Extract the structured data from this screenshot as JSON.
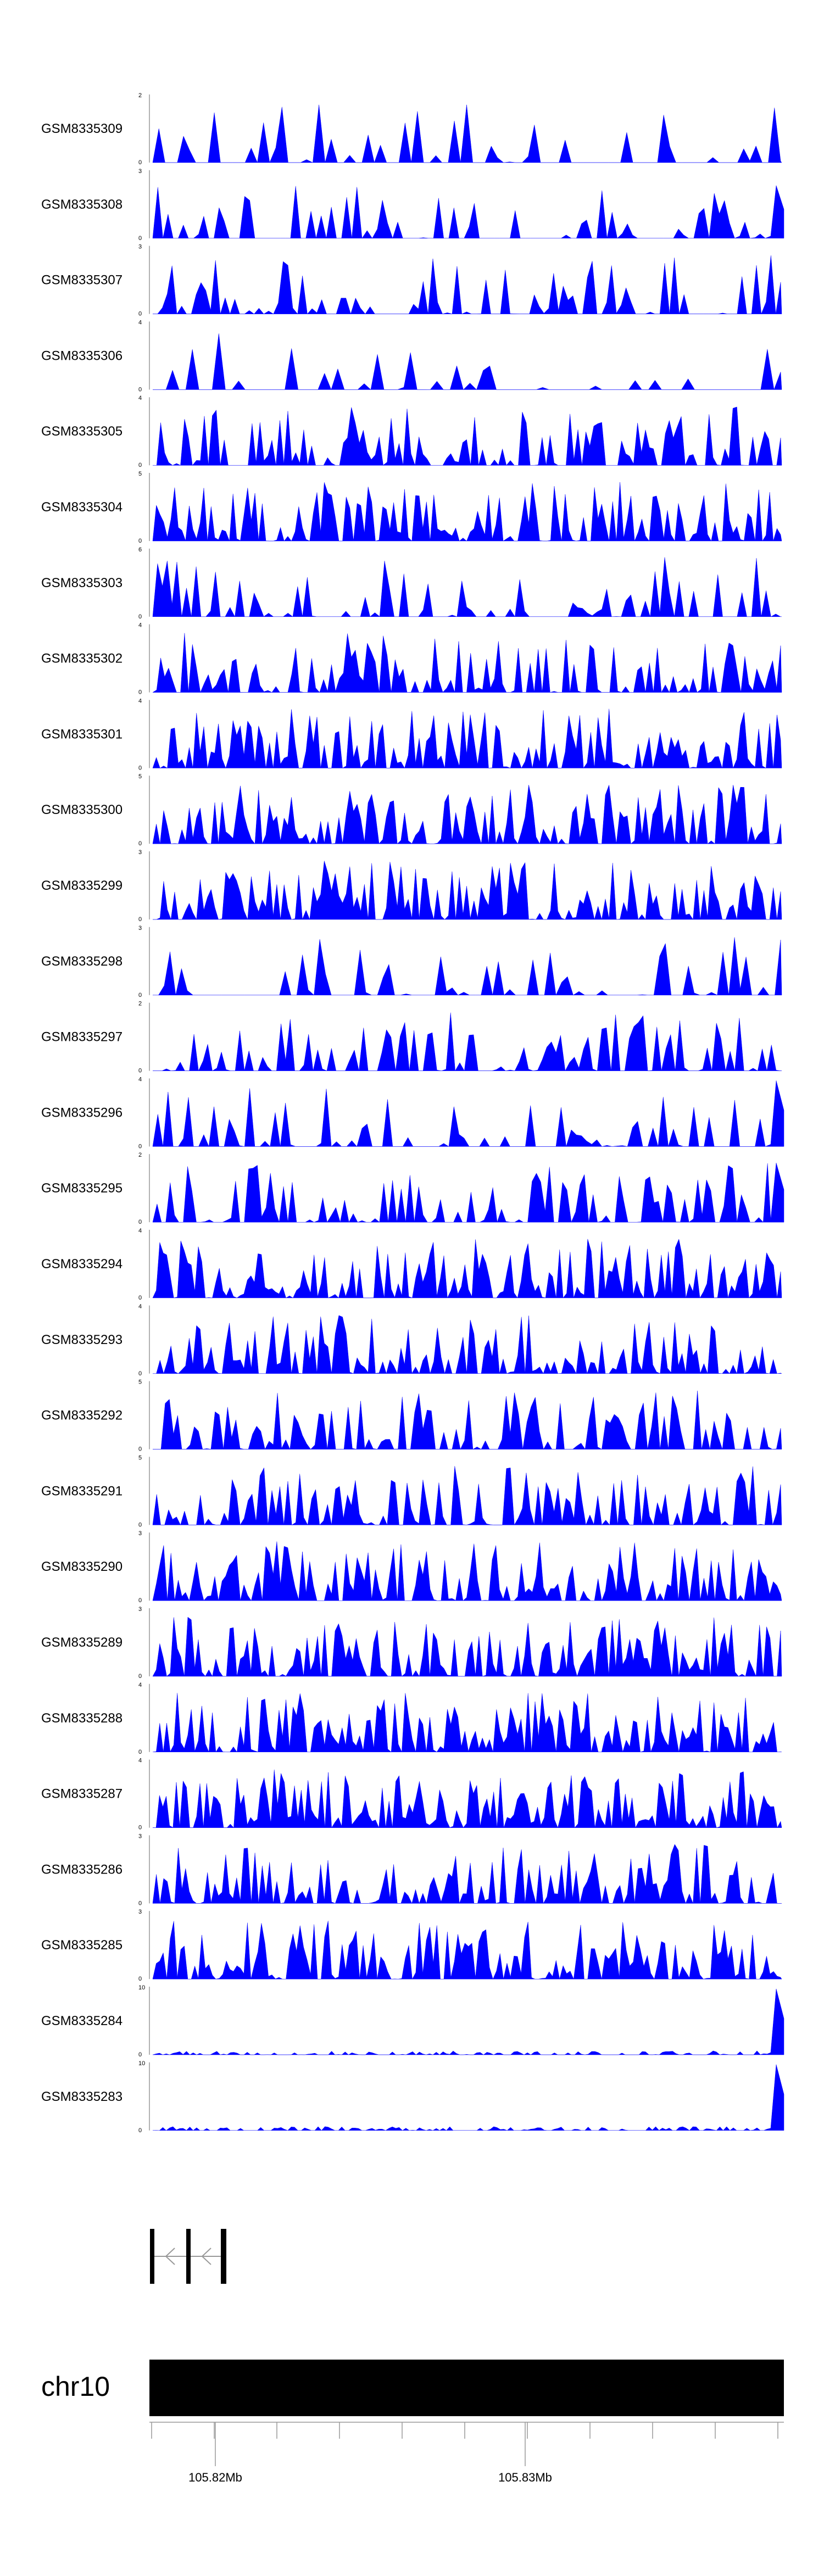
{
  "chart_data": {
    "type": "area",
    "tracks": [
      {
        "name": "GSM8335309",
        "ymax": "2",
        "ymin": "0",
        "scale": 2,
        "seed": 9,
        "density": 0.3,
        "spike": null
      },
      {
        "name": "GSM8335308",
        "ymax": "3",
        "ymin": "0",
        "scale": 3,
        "seed": 8,
        "density": 0.45,
        "spike": 0.8
      },
      {
        "name": "GSM8335307",
        "ymax": "3",
        "ymin": "0",
        "scale": 3,
        "seed": 7,
        "density": 0.5,
        "spike": null
      },
      {
        "name": "GSM8335306",
        "ymax": "4",
        "ymin": "0",
        "scale": 4,
        "seed": 6,
        "density": 0.25,
        "spike": null
      },
      {
        "name": "GSM8335305",
        "ymax": "4",
        "ymin": "0",
        "scale": 4,
        "seed": 5,
        "density": 0.7,
        "spike": null
      },
      {
        "name": "GSM8335304",
        "ymax": "5",
        "ymin": "0",
        "scale": 5,
        "seed": 4,
        "density": 0.8,
        "spike": null
      },
      {
        "name": "GSM8335303",
        "ymax": "6",
        "ymin": "0",
        "scale": 6,
        "seed": 3,
        "density": 0.5,
        "spike": null
      },
      {
        "name": "GSM8335302",
        "ymax": "4",
        "ymin": "0",
        "scale": 4,
        "seed": 2,
        "density": 0.7,
        "spike": null
      },
      {
        "name": "GSM8335301",
        "ymax": "4",
        "ymin": "0",
        "scale": 4,
        "seed": 1,
        "density": 0.8,
        "spike": null
      },
      {
        "name": "GSM8335300",
        "ymax": "5",
        "ymin": "0",
        "scale": 5,
        "seed": 10,
        "density": 0.8,
        "spike": null
      },
      {
        "name": "GSM8335299",
        "ymax": "3",
        "ymin": "0",
        "scale": 3,
        "seed": 11,
        "density": 0.8,
        "spike": null
      },
      {
        "name": "GSM8335298",
        "ymax": "3",
        "ymin": "0",
        "scale": 3,
        "seed": 12,
        "density": 0.35,
        "spike": null
      },
      {
        "name": "GSM8335297",
        "ymax": "2",
        "ymin": "0",
        "scale": 2,
        "seed": 13,
        "density": 0.55,
        "spike": null
      },
      {
        "name": "GSM8335296",
        "ymax": "4",
        "ymin": "0",
        "scale": 4,
        "seed": 14,
        "density": 0.45,
        "spike": 1.0
      },
      {
        "name": "GSM8335295",
        "ymax": "2",
        "ymin": "0",
        "scale": 2,
        "seed": 15,
        "density": 0.6,
        "spike": 0.9
      },
      {
        "name": "GSM8335294",
        "ymax": "4",
        "ymin": "0",
        "scale": 4,
        "seed": 16,
        "density": 0.85,
        "spike": null
      },
      {
        "name": "GSM8335293",
        "ymax": "4",
        "ymin": "0",
        "scale": 4,
        "seed": 17,
        "density": 0.8,
        "spike": null
      },
      {
        "name": "GSM8335292",
        "ymax": "5",
        "ymin": "0",
        "scale": 5,
        "seed": 18,
        "density": 0.65,
        "spike": null
      },
      {
        "name": "GSM8335291",
        "ymax": "5",
        "ymin": "0",
        "scale": 5,
        "seed": 19,
        "density": 0.7,
        "spike": null
      },
      {
        "name": "GSM8335290",
        "ymax": "3",
        "ymin": "0",
        "scale": 3,
        "seed": 20,
        "density": 0.8,
        "spike": null
      },
      {
        "name": "GSM8335289",
        "ymax": "3",
        "ymin": "0",
        "scale": 3,
        "seed": 21,
        "density": 0.85,
        "spike": null
      },
      {
        "name": "GSM8335288",
        "ymax": "4",
        "ymin": "0",
        "scale": 4,
        "seed": 22,
        "density": 0.85,
        "spike": null
      },
      {
        "name": "GSM8335287",
        "ymax": "4",
        "ymin": "0",
        "scale": 4,
        "seed": 23,
        "density": 0.9,
        "spike": null
      },
      {
        "name": "GSM8335286",
        "ymax": "3",
        "ymin": "0",
        "scale": 3,
        "seed": 24,
        "density": 0.8,
        "spike": null
      },
      {
        "name": "GSM8335285",
        "ymax": "3",
        "ymin": "0",
        "scale": 3,
        "seed": 25,
        "density": 0.85,
        "spike": null
      },
      {
        "name": "GSM8335284",
        "ymax": "10",
        "ymin": "0",
        "scale": 10,
        "seed": 26,
        "density": 0.9,
        "spike": 1.0,
        "low": true
      },
      {
        "name": "GSM8335283",
        "ymax": "10",
        "ymin": "0",
        "scale": 10,
        "seed": 27,
        "density": 0.9,
        "spike": 1.0,
        "low": true
      }
    ],
    "chromosome": "chr10",
    "axis_labels": [
      "105.82Mb",
      "105.83Mb"
    ],
    "fill_color": "#0000ff"
  }
}
